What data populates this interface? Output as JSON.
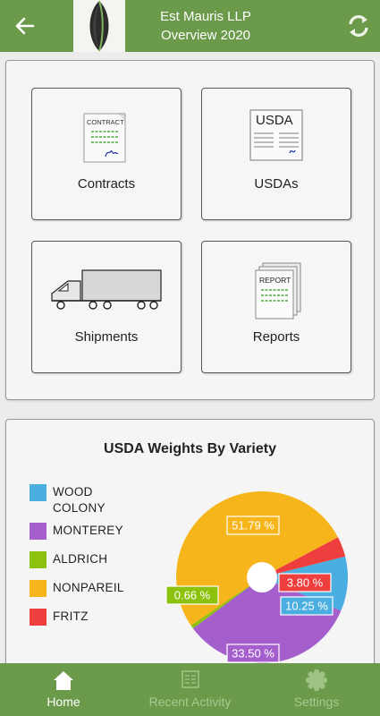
{
  "header": {
    "company": "Est Mauris LLP",
    "subtitle": "Overview 2020",
    "bar_color": "#6a9a4a",
    "back_icon": "arrow-left-icon",
    "refresh_icon": "refresh-icon"
  },
  "menu": {
    "tiles": [
      {
        "label": "Contracts",
        "icon": "contract-document-icon",
        "icon_text": "CONTRACT"
      },
      {
        "label": "USDAs",
        "icon": "usda-document-icon",
        "icon_text": "USDA"
      },
      {
        "label": "Shipments",
        "icon": "truck-icon"
      },
      {
        "label": "Reports",
        "icon": "report-stack-icon",
        "icon_text": "REPORT"
      }
    ]
  },
  "chart_data": {
    "type": "pie",
    "title": "USDA Weights By Variety",
    "legend_position": "left",
    "series": [
      {
        "name": "WOOD COLONY",
        "value": 10.25,
        "label": "10.25 %",
        "color": "#4aaee0"
      },
      {
        "name": "MONTEREY",
        "value": 33.5,
        "label": "33.50 %",
        "color": "#a55fcc"
      },
      {
        "name": "ALDRICH",
        "value": 0.66,
        "label": "0.66 %",
        "color": "#8cc20e"
      },
      {
        "name": "NONPAREIL",
        "value": 51.79,
        "label": "51.79 %",
        "color": "#f6b51b"
      },
      {
        "name": "FRITZ",
        "value": 3.8,
        "label": "3.80 %",
        "color": "#ef3e3e"
      }
    ]
  },
  "bottom_nav": {
    "items": [
      {
        "label": "Home",
        "icon": "home-icon",
        "active": true
      },
      {
        "label": "Recent Activity",
        "icon": "document-list-icon",
        "active": false
      },
      {
        "label": "Settings",
        "icon": "gear-icon",
        "active": false
      }
    ]
  }
}
